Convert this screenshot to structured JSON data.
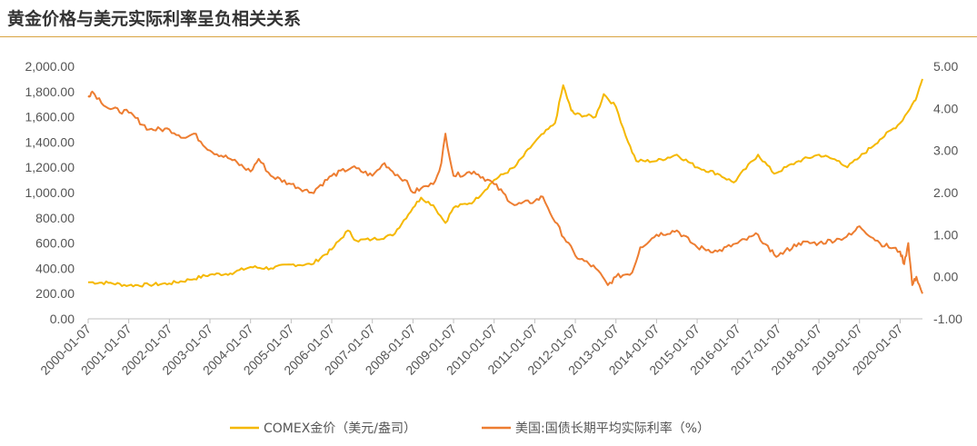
{
  "chart_data": {
    "type": "line",
    "title": "黄金价格与美元实际利率呈负相关关系",
    "x_tick_labels": [
      "2000-01-07",
      "2001-01-07",
      "2002-01-07",
      "2003-01-07",
      "2004-01-07",
      "2005-01-07",
      "2006-01-07",
      "2007-01-07",
      "2008-01-07",
      "2009-01-07",
      "2010-01-07",
      "2011-01-07",
      "2012-01-07",
      "2013-01-07",
      "2014-01-07",
      "2015-01-07",
      "2016-01-07",
      "2017-01-07",
      "2018-01-07",
      "2019-01-07",
      "2020-01-07"
    ],
    "x_range": [
      2000.0,
      2020.55
    ],
    "y_left": {
      "range": [
        0,
        2000
      ],
      "ticks": [
        "0.00",
        "200.00",
        "400.00",
        "600.00",
        "800.00",
        "1,000.00",
        "1,200.00",
        "1,400.00",
        "1,600.00",
        "1,800.00",
        "2,000.00"
      ]
    },
    "y_right": {
      "range": [
        -1,
        5
      ],
      "ticks": [
        "-1.00",
        "0.00",
        "1.00",
        "2.00",
        "3.00",
        "4.00",
        "5.00"
      ]
    },
    "legend_position": "bottom",
    "grid": false,
    "series": [
      {
        "name": "COMEX金价（美元/盎司）",
        "axis": "left",
        "color": "#f5b800",
        "x": [
          2000.0,
          2000.5,
          2001.0,
          2001.5,
          2002.0,
          2002.5,
          2003.0,
          2003.5,
          2004.0,
          2004.5,
          2005.0,
          2005.5,
          2006.0,
          2006.4,
          2006.6,
          2007.0,
          2007.5,
          2008.0,
          2008.2,
          2008.5,
          2008.8,
          2009.0,
          2009.5,
          2010.0,
          2010.5,
          2011.0,
          2011.5,
          2011.7,
          2011.9,
          2012.0,
          2012.5,
          2012.7,
          2013.0,
          2013.3,
          2013.5,
          2014.0,
          2014.5,
          2015.0,
          2015.5,
          2015.9,
          2016.5,
          2016.9,
          2017.5,
          2018.0,
          2018.5,
          2018.7,
          2019.0,
          2019.5,
          2020.0,
          2020.3,
          2020.4,
          2020.55
        ],
        "y": [
          290,
          285,
          265,
          270,
          280,
          310,
          350,
          360,
          410,
          400,
          430,
          430,
          550,
          700,
          620,
          630,
          660,
          880,
          960,
          900,
          760,
          880,
          930,
          1100,
          1200,
          1400,
          1550,
          1850,
          1650,
          1620,
          1600,
          1780,
          1680,
          1400,
          1250,
          1250,
          1300,
          1200,
          1150,
          1080,
          1300,
          1150,
          1250,
          1300,
          1250,
          1200,
          1280,
          1420,
          1550,
          1700,
          1750,
          1900
        ]
      },
      {
        "name": "美国:国债长期平均实际利率（%）",
        "axis": "right",
        "color": "#ed7d31",
        "x": [
          2000.0,
          2000.1,
          2000.5,
          2001.0,
          2001.5,
          2002.0,
          2002.4,
          2002.6,
          2003.0,
          2003.5,
          2004.0,
          2004.2,
          2004.5,
          2005.0,
          2005.5,
          2006.0,
          2006.5,
          2007.0,
          2007.3,
          2007.5,
          2007.8,
          2008.0,
          2008.2,
          2008.5,
          2008.7,
          2008.8,
          2009.0,
          2009.5,
          2010.0,
          2010.5,
          2011.0,
          2011.2,
          2011.5,
          2012.0,
          2012.5,
          2012.8,
          2013.0,
          2013.4,
          2013.6,
          2014.0,
          2014.5,
          2015.0,
          2015.5,
          2016.0,
          2016.5,
          2016.8,
          2017.0,
          2017.5,
          2018.0,
          2018.5,
          2018.8,
          2019.0,
          2019.5,
          2020.0,
          2020.1,
          2020.2,
          2020.3,
          2020.4,
          2020.55
        ],
        "y": [
          4.3,
          4.4,
          4.0,
          3.9,
          3.5,
          3.5,
          3.3,
          3.4,
          3.0,
          2.8,
          2.5,
          2.8,
          2.4,
          2.2,
          2.0,
          2.4,
          2.6,
          2.4,
          2.7,
          2.5,
          2.3,
          2.0,
          2.1,
          2.2,
          2.7,
          3.4,
          2.4,
          2.5,
          2.2,
          1.7,
          1.8,
          1.9,
          1.3,
          0.5,
          0.2,
          -0.2,
          0.0,
          0.1,
          0.7,
          1.0,
          1.1,
          0.7,
          0.6,
          0.8,
          1.0,
          0.6,
          0.5,
          0.8,
          0.8,
          0.9,
          1.0,
          1.2,
          0.8,
          0.6,
          0.3,
          0.8,
          -0.2,
          0.0,
          -0.4
        ]
      }
    ]
  }
}
